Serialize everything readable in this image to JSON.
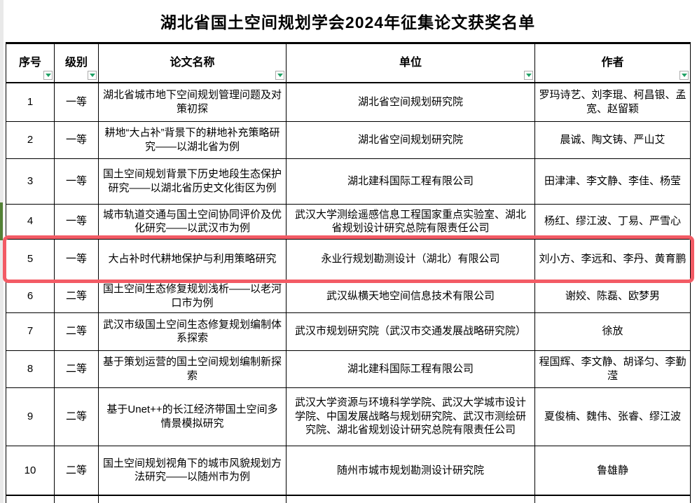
{
  "page": {
    "title": "湖北省国土空间规划学会2024年征集论文获奖名单"
  },
  "table": {
    "columns": [
      {
        "label": "序号"
      },
      {
        "label": "级别"
      },
      {
        "label": "论文名称"
      },
      {
        "label": "单位"
      },
      {
        "label": "作者"
      }
    ],
    "filter_icon": "filter-dropdown-triangle",
    "rows": [
      {
        "no": "1",
        "level": "一等",
        "title": "湖北省城市地下空间规划管理问题及对策初探",
        "org": "湖北省空间规划研究院",
        "authors": "罗玛诗艺、刘李琨、柯昌银、孟宽、赵留颖"
      },
      {
        "no": "2",
        "level": "一等",
        "title": "耕地“大占补”背景下的耕地补充策略研究——以湖北省为例",
        "org": "湖北省空间规划研究院",
        "authors": "晨诚、陶文铸、严山艾"
      },
      {
        "no": "3",
        "level": "一等",
        "title": "国土空间规划背景下历史地段生态保护研究——以湖北省历史文化街区为例",
        "org": "湖北建科国际工程有限公司",
        "authors": "田津津、李文静、李佳、杨莹"
      },
      {
        "no": "4",
        "level": "一等",
        "title": "城市轨道交通与国土空间协同评价及优化研究——以武汉市为例",
        "org": "武汉大学测绘遥感信息工程国家重点实验室、湖北省规划设计研究总院有限责任公司",
        "authors": "杨红、缪江波、丁易、严雪心"
      },
      {
        "no": "5",
        "level": "一等",
        "title": "大占补时代耕地保护与利用策略研究",
        "org": "永业行规划勘测设计（湖北）有限公司",
        "authors": "刘小方、李远和、李丹、黄育鹏"
      },
      {
        "no": "6",
        "level": "二等",
        "title": "国土空间生态修复规划浅析——以老河口市为例",
        "org": "武汉纵横天地空间信息技术有限公司",
        "authors": "谢姣、陈磊、欧梦男"
      },
      {
        "no": "7",
        "level": "二等",
        "title": "武汉市级国土空间生态修复规划编制体系探索",
        "org": "武汉市规划研究院（武汉市交通发展战略研究院）",
        "authors": "徐放"
      },
      {
        "no": "8",
        "level": "二等",
        "title": "基于策划运营的国土空间规划编制新探索",
        "org": "湖北建科国际工程有限公司",
        "authors": "程国辉、李文静、胡译匀、李勤滢"
      },
      {
        "no": "9",
        "level": "二等",
        "title": "基于Unet++的长江经济带国土空间多情景模拟研究",
        "org": "武汉大学资源与环境科学学院、武汉大学城市设计学院、中国发展战略与规划研究院、武汉市测绘研究院、湖北省规划设计研究总院有限责任公司",
        "authors": "夏俊楠、魏伟、张睿、缪江波"
      },
      {
        "no": "10",
        "level": "二等",
        "title": "国土空间规划视角下的城市风貌规划方法研究——以随州市为例",
        "org": "随州市城市规划勘测设计研究院",
        "authors": "鲁雄静"
      }
    ]
  },
  "annotations": {
    "highlighted_row_no": "5",
    "highlight_color": "#f35b65",
    "marker_row_no": "4",
    "marker_color": "#538135"
  },
  "colors": {
    "filter_triangle": "#21a366",
    "border": "#000000",
    "gutter": "#e9e9e9"
  }
}
